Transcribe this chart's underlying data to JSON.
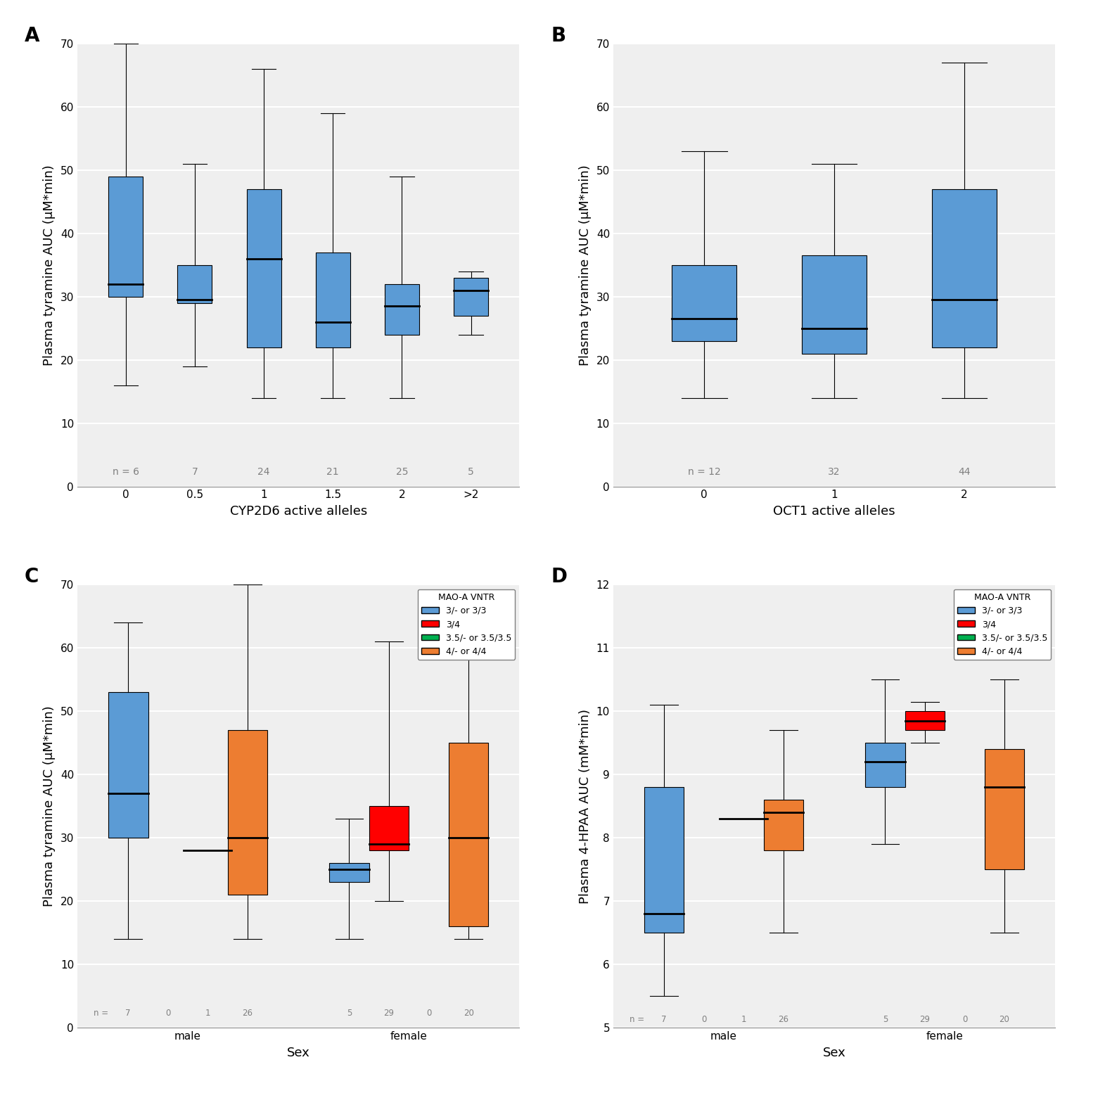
{
  "panel_A": {
    "title": "A",
    "xlabel": "CYP2D6 active alleles",
    "ylabel": "Plasma tyramine AUC (μM*min)",
    "ylim": [
      0,
      70
    ],
    "yticks": [
      0,
      10,
      20,
      30,
      40,
      50,
      60,
      70
    ],
    "categories": [
      "0",
      "0.5",
      "1",
      "1.5",
      "2",
      ">2"
    ],
    "n_values": [
      6,
      7,
      24,
      21,
      25,
      5
    ],
    "boxes": [
      {
        "q1": 30,
        "median": 32,
        "q3": 49,
        "whislo": 16,
        "whishi": 70
      },
      {
        "q1": 29,
        "median": 29.5,
        "q3": 35,
        "whislo": 19,
        "whishi": 51
      },
      {
        "q1": 22,
        "median": 36,
        "q3": 47,
        "whislo": 14,
        "whishi": 66
      },
      {
        "q1": 22,
        "median": 26,
        "q3": 37,
        "whislo": 14,
        "whishi": 59
      },
      {
        "q1": 24,
        "median": 28.5,
        "q3": 32,
        "whislo": 14,
        "whishi": 49
      },
      {
        "q1": 27,
        "median": 31,
        "q3": 33,
        "whislo": 24,
        "whishi": 34
      }
    ],
    "box_color": "#5B9BD5",
    "box_width": 0.5
  },
  "panel_B": {
    "title": "B",
    "xlabel": "OCT1 active alleles",
    "ylabel": "Plasma tyramine AUC (μM*min)",
    "ylim": [
      0,
      70
    ],
    "yticks": [
      0,
      10,
      20,
      30,
      40,
      50,
      60,
      70
    ],
    "categories": [
      "0",
      "1",
      "2"
    ],
    "n_values": [
      12,
      32,
      44
    ],
    "boxes": [
      {
        "q1": 23,
        "median": 26.5,
        "q3": 35,
        "whislo": 14,
        "whishi": 53
      },
      {
        "q1": 21,
        "median": 25,
        "q3": 36.5,
        "whislo": 14,
        "whishi": 51
      },
      {
        "q1": 22,
        "median": 29.5,
        "q3": 47,
        "whislo": 14,
        "whishi": 67
      }
    ],
    "box_color": "#5B9BD5",
    "box_width": 0.5
  },
  "panel_C": {
    "title": "C",
    "xlabel": "Sex",
    "ylabel": "Plasma tyramine AUC (μM*min)",
    "ylim": [
      0,
      70
    ],
    "yticks": [
      0,
      10,
      20,
      30,
      40,
      50,
      60,
      70
    ],
    "groups": [
      "male",
      "female"
    ],
    "series": [
      {
        "label": "3/- or 3/3",
        "color": "#5B9BD5",
        "male": {
          "q1": 30,
          "median": 37,
          "q3": 53,
          "whislo": 14,
          "whishi": 64,
          "show": true
        },
        "female": {
          "q1": 23,
          "median": 25,
          "q3": 26,
          "whislo": 14,
          "whishi": 33,
          "show": true
        }
      },
      {
        "label": "3/4",
        "color": "#FF0000",
        "male": {
          "q1": null,
          "median": null,
          "q3": null,
          "whislo": null,
          "whishi": null,
          "show": false
        },
        "female": {
          "q1": 28,
          "median": 29,
          "q3": 35,
          "whislo": 20,
          "whishi": 61,
          "show": true
        }
      },
      {
        "label": "3.5/- or 3.5/3.5",
        "color": "#00B050",
        "male": {
          "q1": 28,
          "median": 28,
          "q3": 28,
          "whislo": 28,
          "whishi": 28,
          "show": true
        },
        "female": {
          "q1": null,
          "median": null,
          "q3": null,
          "whislo": null,
          "whishi": null,
          "show": false
        }
      },
      {
        "label": "4/- or 4/4",
        "color": "#ED7D31",
        "male": {
          "q1": 21,
          "median": 30,
          "q3": 47,
          "whislo": 14,
          "whishi": 70,
          "show": true
        },
        "female": {
          "q1": 16,
          "median": 30,
          "q3": 45,
          "whislo": 14,
          "whishi": 60,
          "show": true
        }
      }
    ],
    "n_list": [
      "7",
      "0",
      "1",
      "26",
      "5",
      "29",
      "0",
      "20"
    ],
    "box_width": 0.18
  },
  "panel_D": {
    "title": "D",
    "xlabel": "Sex",
    "ylabel": "Plasma 4-HPAA AUC (mM*min)",
    "ylim": [
      5,
      12
    ],
    "yticks": [
      5,
      6,
      7,
      8,
      9,
      10,
      11,
      12
    ],
    "groups": [
      "male",
      "female"
    ],
    "series": [
      {
        "label": "3/- or 3/3",
        "color": "#5B9BD5",
        "male": {
          "q1": 6.5,
          "median": 6.8,
          "q3": 8.8,
          "whislo": 5.5,
          "whishi": 10.1,
          "show": true
        },
        "female": {
          "q1": 8.8,
          "median": 9.2,
          "q3": 9.5,
          "whislo": 7.9,
          "whishi": 10.5,
          "show": true
        }
      },
      {
        "label": "3/4",
        "color": "#FF0000",
        "male": {
          "q1": null,
          "median": null,
          "q3": null,
          "whislo": null,
          "whishi": null,
          "show": false
        },
        "female": {
          "q1": 9.7,
          "median": 9.85,
          "q3": 10.0,
          "whislo": 9.5,
          "whishi": 10.15,
          "show": true
        }
      },
      {
        "label": "3.5/- or 3.5/3.5",
        "color": "#00B050",
        "male": {
          "q1": 8.3,
          "median": 8.3,
          "q3": 8.3,
          "whislo": 8.3,
          "whishi": 8.3,
          "show": true
        },
        "female": {
          "q1": null,
          "median": null,
          "q3": null,
          "whislo": null,
          "whishi": null,
          "show": false
        }
      },
      {
        "label": "4/- or 4/4",
        "color": "#ED7D31",
        "male": {
          "q1": 7.8,
          "median": 8.4,
          "q3": 8.6,
          "whislo": 6.5,
          "whishi": 9.7,
          "show": true
        },
        "female": {
          "q1": 7.5,
          "median": 8.8,
          "q3": 9.4,
          "whislo": 6.5,
          "whishi": 10.5,
          "show": true
        }
      }
    ],
    "n_list": [
      "7",
      "0",
      "1",
      "26",
      "5",
      "29",
      "0",
      "20"
    ],
    "box_width": 0.18
  },
  "figure_bg": "#FFFFFF",
  "panel_bg": "#EFEFEF",
  "grid_color": "#FFFFFF",
  "label_fontsize": 13,
  "tick_fontsize": 11,
  "n_fontsize": 10
}
